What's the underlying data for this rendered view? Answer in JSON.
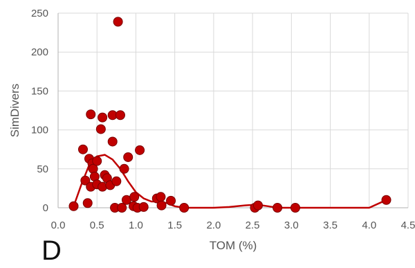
{
  "panel_label": "D",
  "chart_data": {
    "type": "scatter",
    "xlabel": "TOM (%)",
    "ylabel": "SimDivers",
    "xlim": [
      0,
      4.5
    ],
    "ylim": [
      0,
      250
    ],
    "xticks": [
      "0.0",
      "0.5",
      "1.0",
      "1.5",
      "2.0",
      "2.5",
      "3.0",
      "3.5",
      "4.0",
      "4.5"
    ],
    "yticks": [
      "0",
      "50",
      "100",
      "150",
      "200",
      "250"
    ],
    "grid": true,
    "legend": "none",
    "colors": {
      "marker": "#c00000",
      "marker_edge": "#7a0000",
      "trend": "#c00000",
      "grid": "#d9d9d9"
    },
    "points": [
      {
        "x": 0.2,
        "y": 2
      },
      {
        "x": 0.32,
        "y": 75
      },
      {
        "x": 0.35,
        "y": 35
      },
      {
        "x": 0.38,
        "y": 6
      },
      {
        "x": 0.4,
        "y": 63
      },
      {
        "x": 0.42,
        "y": 120
      },
      {
        "x": 0.42,
        "y": 27
      },
      {
        "x": 0.44,
        "y": 57
      },
      {
        "x": 0.45,
        "y": 50
      },
      {
        "x": 0.47,
        "y": 40
      },
      {
        "x": 0.5,
        "y": 60
      },
      {
        "x": 0.5,
        "y": 30
      },
      {
        "x": 0.55,
        "y": 101
      },
      {
        "x": 0.57,
        "y": 116
      },
      {
        "x": 0.57,
        "y": 27
      },
      {
        "x": 0.6,
        "y": 42
      },
      {
        "x": 0.63,
        "y": 38
      },
      {
        "x": 0.67,
        "y": 29
      },
      {
        "x": 0.7,
        "y": 119
      },
      {
        "x": 0.7,
        "y": 85
      },
      {
        "x": 0.73,
        "y": 0
      },
      {
        "x": 0.75,
        "y": 34
      },
      {
        "x": 0.77,
        "y": 239
      },
      {
        "x": 0.8,
        "y": 119
      },
      {
        "x": 0.82,
        "y": 0
      },
      {
        "x": 0.85,
        "y": 50
      },
      {
        "x": 0.88,
        "y": 10
      },
      {
        "x": 0.9,
        "y": 65
      },
      {
        "x": 0.97,
        "y": 2
      },
      {
        "x": 0.98,
        "y": 14
      },
      {
        "x": 1.02,
        "y": 0
      },
      {
        "x": 1.05,
        "y": 74
      },
      {
        "x": 1.1,
        "y": 1
      },
      {
        "x": 1.27,
        "y": 12
      },
      {
        "x": 1.32,
        "y": 14
      },
      {
        "x": 1.33,
        "y": 3
      },
      {
        "x": 1.45,
        "y": 9
      },
      {
        "x": 1.62,
        "y": 0
      },
      {
        "x": 2.53,
        "y": 0
      },
      {
        "x": 2.57,
        "y": 3
      },
      {
        "x": 2.82,
        "y": 0
      },
      {
        "x": 3.05,
        "y": 0
      },
      {
        "x": 4.22,
        "y": 10
      }
    ],
    "trend": [
      {
        "x": 0.2,
        "y": 2
      },
      {
        "x": 0.3,
        "y": 30
      },
      {
        "x": 0.4,
        "y": 55
      },
      {
        "x": 0.5,
        "y": 66
      },
      {
        "x": 0.6,
        "y": 68
      },
      {
        "x": 0.7,
        "y": 62
      },
      {
        "x": 0.8,
        "y": 50
      },
      {
        "x": 0.9,
        "y": 34
      },
      {
        "x": 1.0,
        "y": 20
      },
      {
        "x": 1.1,
        "y": 12
      },
      {
        "x": 1.2,
        "y": 8
      },
      {
        "x": 1.3,
        "y": 8
      },
      {
        "x": 1.4,
        "y": 6
      },
      {
        "x": 1.5,
        "y": 2
      },
      {
        "x": 1.62,
        "y": 0
      },
      {
        "x": 2.0,
        "y": 0
      },
      {
        "x": 2.2,
        "y": 1
      },
      {
        "x": 2.4,
        "y": 3
      },
      {
        "x": 2.55,
        "y": 4
      },
      {
        "x": 2.7,
        "y": 2
      },
      {
        "x": 2.82,
        "y": 0
      },
      {
        "x": 3.05,
        "y": 0
      },
      {
        "x": 4.0,
        "y": 0
      },
      {
        "x": 4.22,
        "y": 10
      }
    ]
  }
}
